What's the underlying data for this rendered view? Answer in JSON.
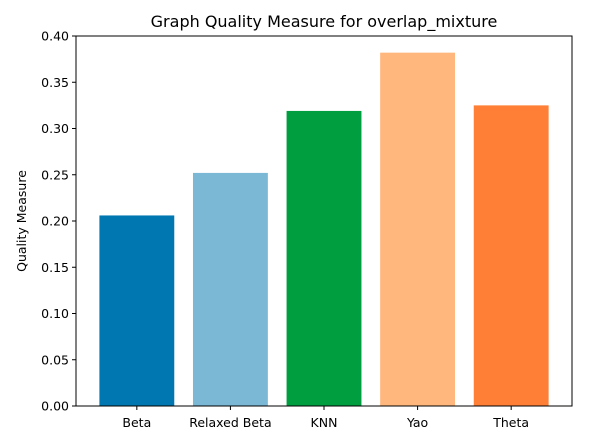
{
  "chart_data": {
    "type": "bar",
    "title": "Graph Quality Measure for overlap_mixture",
    "xlabel": "",
    "ylabel": "Quality Measure",
    "categories": [
      "Beta",
      "Relaxed Beta",
      "KNN",
      "Yao",
      "Theta"
    ],
    "values": [
      0.206,
      0.252,
      0.319,
      0.382,
      0.325
    ],
    "colors": [
      "#0077b1",
      "#7ab8d6",
      "#009e3f",
      "#ffb77d",
      "#ff7f37"
    ],
    "ylim": [
      0,
      0.4
    ],
    "yticks": [
      "0.00",
      "0.05",
      "0.10",
      "0.15",
      "0.20",
      "0.25",
      "0.30",
      "0.35",
      "0.40"
    ],
    "grid": false,
    "legend": "none"
  }
}
